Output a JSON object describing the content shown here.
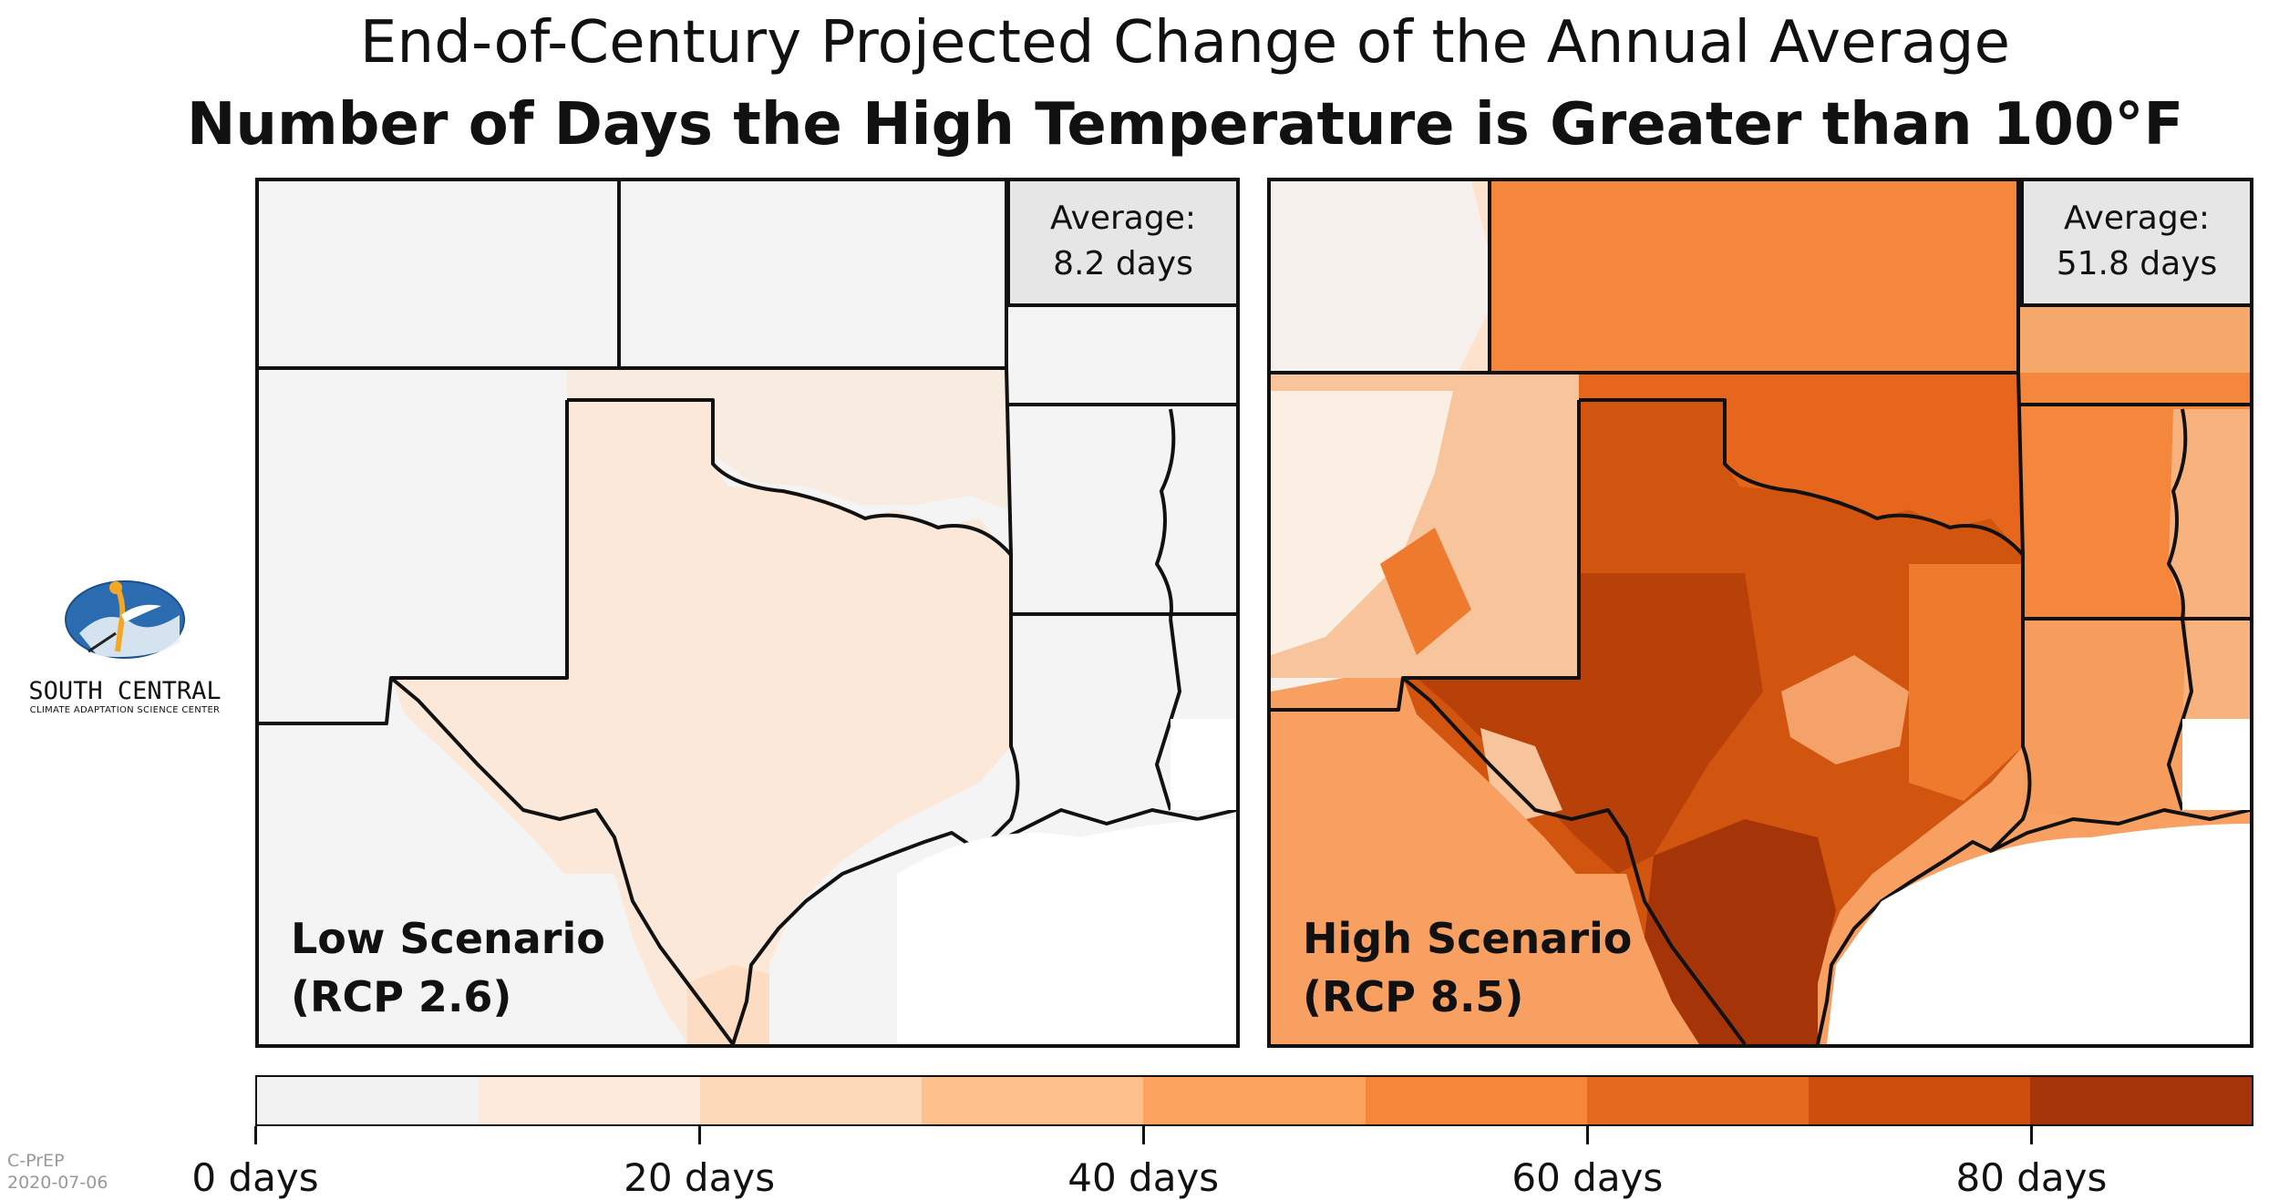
{
  "title_line1": "End-of-Century Projected Change of the Annual Average",
  "title_line2": "Number of Days the High Temperature is Greater than 100°F",
  "panels": {
    "low": {
      "average_label": "Average:",
      "average_value": "8.2 days",
      "scenario_name": "Low Scenario",
      "scenario_rcp": "(RCP 2.6)"
    },
    "high": {
      "average_label": "Average:",
      "average_value": "51.8 days",
      "scenario_name": "High Scenario",
      "scenario_rcp": "(RCP 8.5)"
    }
  },
  "logo": {
    "name": "SOUTH CENTRAL",
    "subtitle": "CLIMATE ADAPTATION SCIENCE CENTER"
  },
  "colorbar": {
    "colors": [
      "#f2f2f2",
      "#fbe9da",
      "#fdd9b9",
      "#fdc08c",
      "#fca45f",
      "#f6873a",
      "#e66a1e",
      "#cc4d0c",
      "#a53508"
    ],
    "tick_labels": [
      "0 days",
      "20 days",
      "40 days",
      "60 days",
      "80 days"
    ]
  },
  "stamp": {
    "product": "C-PrEP",
    "date": "2020-07-06"
  }
}
